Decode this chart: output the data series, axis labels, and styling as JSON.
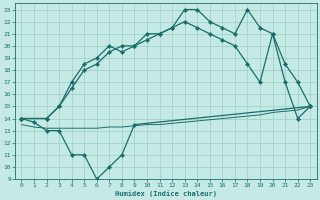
{
  "xlabel": "Humidex (Indice chaleur)",
  "xlim": [
    -0.5,
    23.5
  ],
  "ylim": [
    9,
    23.5
  ],
  "xticks": [
    0,
    1,
    2,
    3,
    4,
    5,
    6,
    7,
    8,
    9,
    10,
    11,
    12,
    13,
    14,
    15,
    16,
    17,
    18,
    19,
    20,
    21,
    22,
    23
  ],
  "yticks": [
    9,
    10,
    11,
    12,
    13,
    14,
    15,
    16,
    17,
    18,
    19,
    20,
    21,
    22,
    23
  ],
  "bg_color": "#c5eae5",
  "grid_color": "#9dccc6",
  "line_color": "#1a6e6a",
  "series_v_x": [
    0,
    1,
    2,
    3,
    4,
    5,
    6,
    7,
    8,
    9,
    23
  ],
  "series_v_y": [
    14,
    13.7,
    13,
    13,
    11,
    11,
    9,
    10,
    11,
    13.5,
    15
  ],
  "series_flat_x": [
    0,
    1,
    2,
    3,
    4,
    5,
    6,
    7,
    8,
    9,
    10,
    11,
    12,
    13,
    14,
    15,
    16,
    17,
    18,
    19,
    20,
    21,
    22,
    23
  ],
  "series_flat_y": [
    13.5,
    13.3,
    13.2,
    13.2,
    13.2,
    13.2,
    13.2,
    13.3,
    13.3,
    13.4,
    13.5,
    13.5,
    13.6,
    13.7,
    13.8,
    13.9,
    14.0,
    14.1,
    14.2,
    14.3,
    14.5,
    14.6,
    14.7,
    15.0
  ],
  "series_mid_x": [
    0,
    2,
    3,
    4,
    5,
    6,
    7,
    8,
    9,
    10,
    11,
    12,
    13,
    14,
    15,
    16,
    17,
    18,
    19,
    20,
    21,
    22,
    23
  ],
  "series_mid_y": [
    14,
    14,
    15,
    16.5,
    18,
    18.5,
    19.5,
    20,
    20,
    20.5,
    21,
    21.5,
    22,
    21.5,
    21,
    20.5,
    20,
    18.5,
    17,
    21,
    17,
    14,
    15
  ],
  "series_top_x": [
    0,
    2,
    3,
    4,
    5,
    6,
    7,
    8,
    9,
    10,
    11,
    12,
    13,
    14,
    15,
    16,
    17,
    18,
    19,
    20,
    21,
    22,
    23
  ],
  "series_top_y": [
    14,
    14,
    15,
    17,
    18.5,
    19,
    20,
    19.5,
    20,
    21,
    21,
    21.5,
    23,
    23,
    22,
    21.5,
    21,
    23,
    21.5,
    21,
    18.5,
    17,
    15
  ]
}
